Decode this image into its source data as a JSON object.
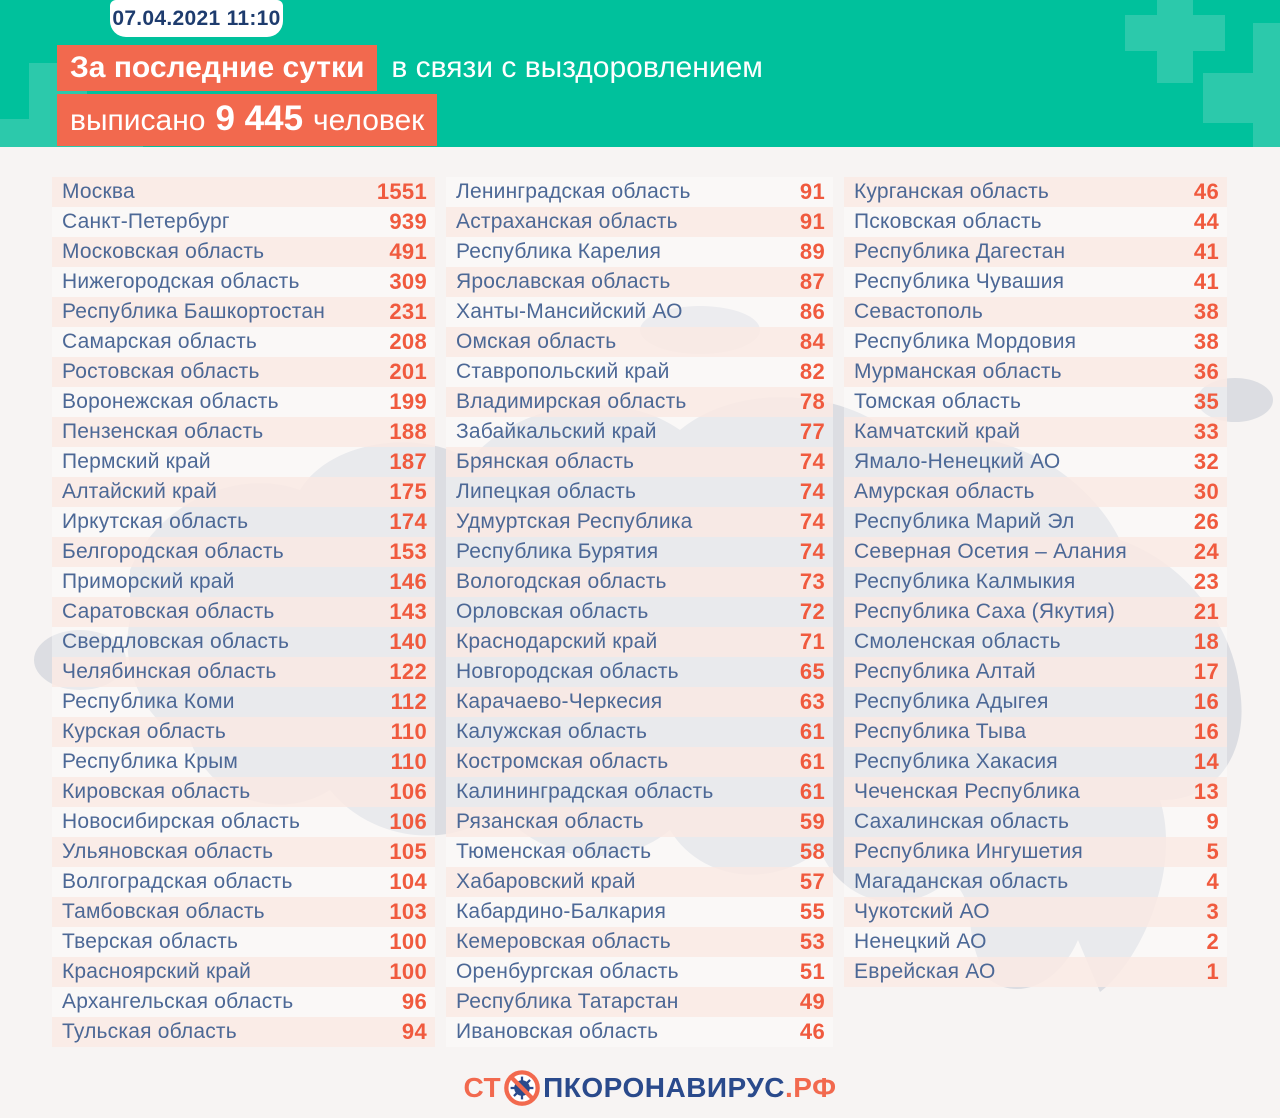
{
  "header": {
    "date_badge": "07.04.2021 11:10",
    "title_highlight": "За последние сутки",
    "title_rest": "в связи с выздоровлением",
    "line2_pre": "выписано",
    "line2_number": "9 445",
    "line2_post": "человек"
  },
  "footer": {
    "logo_st": "СТ",
    "logo_icon": "no-virus-icon",
    "logo_main": "ПКОРОНАВИРУС",
    "logo_rf": ".РФ"
  },
  "colors": {
    "teal_background": "#00C19C",
    "teal_cross": "#2CC9AB",
    "orange_highlight": "#F2694E",
    "orange_value": "#F05A3E",
    "navy_date": "#1E3C6E",
    "region_text": "#4C6896",
    "logo_navy": "#2A4A8C",
    "row_pink": "#FAEBE5",
    "page_background": "#F7F4F3",
    "map_gray": "#D8DAE0"
  },
  "chart_data": {
    "type": "table",
    "title": "За последние сутки в связи с выздоровлением выписано 9 445 человек",
    "date": "07.04.2021 11:10",
    "total_discharged": 9445,
    "columns": [
      {
        "rows": [
          {
            "region": "Москва",
            "value": 1551
          },
          {
            "region": "Санкт-Петербург",
            "value": 939
          },
          {
            "region": "Московская область",
            "value": 491
          },
          {
            "region": "Нижегородская область",
            "value": 309
          },
          {
            "region": "Республика Башкортостан",
            "value": 231
          },
          {
            "region": "Самарская область",
            "value": 208
          },
          {
            "region": "Ростовская область",
            "value": 201
          },
          {
            "region": "Воронежская область",
            "value": 199
          },
          {
            "region": "Пензенская область",
            "value": 188
          },
          {
            "region": "Пермский край",
            "value": 187
          },
          {
            "region": "Алтайский край",
            "value": 175
          },
          {
            "region": "Иркутская область",
            "value": 174
          },
          {
            "region": "Белгородская область",
            "value": 153
          },
          {
            "region": "Приморский край",
            "value": 146
          },
          {
            "region": "Саратовская область",
            "value": 143
          },
          {
            "region": "Свердловская область",
            "value": 140
          },
          {
            "region": "Челябинская область",
            "value": 122
          },
          {
            "region": "Республика Коми",
            "value": 112
          },
          {
            "region": "Курская область",
            "value": 110
          },
          {
            "region": "Республика Крым",
            "value": 110
          },
          {
            "region": "Кировская область",
            "value": 106
          },
          {
            "region": "Новосибирская область",
            "value": 106
          },
          {
            "region": "Ульяновская область",
            "value": 105
          },
          {
            "region": "Волгоградская область",
            "value": 104
          },
          {
            "region": "Тамбовская область",
            "value": 103
          },
          {
            "region": "Тверская область",
            "value": 100
          },
          {
            "region": "Красноярский край",
            "value": 100
          },
          {
            "region": "Архангельская область",
            "value": 96
          },
          {
            "region": "Тульская область",
            "value": 94
          }
        ]
      },
      {
        "rows": [
          {
            "region": "Ленинградская область",
            "value": 91
          },
          {
            "region": "Астраханская область",
            "value": 91
          },
          {
            "region": "Республика Карелия",
            "value": 89
          },
          {
            "region": "Ярославская область",
            "value": 87
          },
          {
            "region": "Ханты-Мансийский АО",
            "value": 86
          },
          {
            "region": "Омская область",
            "value": 84
          },
          {
            "region": "Ставропольский край",
            "value": 82
          },
          {
            "region": "Владимирская область",
            "value": 78
          },
          {
            "region": "Забайкальский край",
            "value": 77
          },
          {
            "region": "Брянская область",
            "value": 74
          },
          {
            "region": "Липецкая область",
            "value": 74
          },
          {
            "region": "Удмуртская Республика",
            "value": 74
          },
          {
            "region": "Республика Бурятия",
            "value": 74
          },
          {
            "region": "Вологодская область",
            "value": 73
          },
          {
            "region": "Орловская область",
            "value": 72
          },
          {
            "region": "Краснодарский край",
            "value": 71
          },
          {
            "region": "Новгородская область",
            "value": 65
          },
          {
            "region": "Карачаево-Черкесия",
            "value": 63
          },
          {
            "region": "Калужская область",
            "value": 61
          },
          {
            "region": "Костромская область",
            "value": 61
          },
          {
            "region": "Калининградская область",
            "value": 61
          },
          {
            "region": "Рязанская область",
            "value": 59
          },
          {
            "region": "Тюменская область",
            "value": 58
          },
          {
            "region": "Хабаровский край",
            "value": 57
          },
          {
            "region": "Кабардино-Балкария",
            "value": 55
          },
          {
            "region": "Кемеровская область",
            "value": 53
          },
          {
            "region": "Оренбургская область",
            "value": 51
          },
          {
            "region": "Республика Татарстан",
            "value": 49
          },
          {
            "region": "Ивановская область",
            "value": 46
          }
        ]
      },
      {
        "rows": [
          {
            "region": "Курганская область",
            "value": 46
          },
          {
            "region": "Псковская область",
            "value": 44
          },
          {
            "region": "Республика Дагестан",
            "value": 41
          },
          {
            "region": "Республика Чувашия",
            "value": 41
          },
          {
            "region": "Севастополь",
            "value": 38
          },
          {
            "region": "Республика Мордовия",
            "value": 38
          },
          {
            "region": "Мурманская область",
            "value": 36
          },
          {
            "region": "Томская область",
            "value": 35
          },
          {
            "region": "Камчатский край",
            "value": 33
          },
          {
            "region": "Ямало-Ненецкий АО",
            "value": 32
          },
          {
            "region": "Амурская область",
            "value": 30
          },
          {
            "region": "Республика Марий Эл",
            "value": 26
          },
          {
            "region": "Северная Осетия – Алания",
            "value": 24
          },
          {
            "region": "Республика Калмыкия",
            "value": 23
          },
          {
            "region": "Республика Саха (Якутия)",
            "value": 21
          },
          {
            "region": "Смоленская область",
            "value": 18
          },
          {
            "region": "Республика Алтай",
            "value": 17
          },
          {
            "region": "Республика Адыгея",
            "value": 16
          },
          {
            "region": "Республика Тыва",
            "value": 16
          },
          {
            "region": "Республика Хакасия",
            "value": 14
          },
          {
            "region": "Чеченская Республика",
            "value": 13
          },
          {
            "region": "Сахалинская область",
            "value": 9
          },
          {
            "region": "Республика Ингушетия",
            "value": 5
          },
          {
            "region": "Магаданская область",
            "value": 4
          },
          {
            "region": "Чукотский АО",
            "value": 3
          },
          {
            "region": "Ненецкий АО",
            "value": 2
          },
          {
            "region": "Еврейская АО",
            "value": 1
          }
        ]
      }
    ]
  }
}
